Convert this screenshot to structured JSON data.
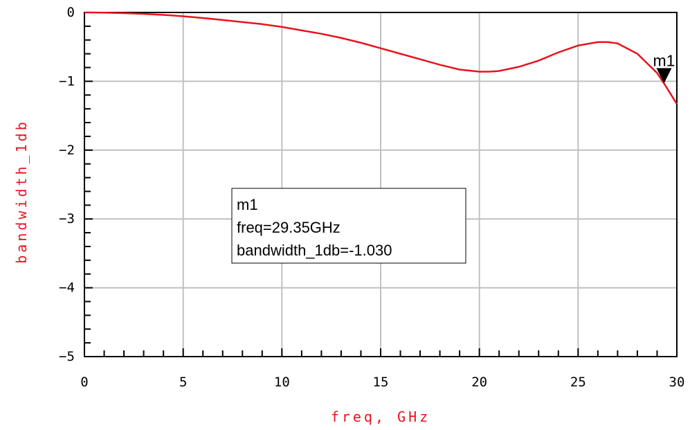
{
  "chart_data": {
    "type": "line",
    "title": "",
    "xlabel": "freq, GHz",
    "ylabel": "bandwidth_1db",
    "xlim": [
      0,
      30
    ],
    "ylim": [
      -5,
      0
    ],
    "x_ticks": [
      "0",
      "5",
      "10",
      "15",
      "20",
      "25",
      "30"
    ],
    "y_ticks": [
      "0",
      "−1",
      "−2",
      "−3",
      "−4",
      "−5"
    ],
    "grid": true,
    "colors": {
      "series": "#e8131c",
      "ylabel": "#e8131c",
      "xlabel": "#e8131c",
      "grid": "#c0c0c0",
      "axis": "#000000"
    },
    "series": [
      {
        "x": [
          0,
          1,
          2,
          3,
          4,
          5,
          6,
          7,
          8,
          9,
          10,
          11,
          12,
          13,
          14,
          15,
          16,
          17,
          18,
          19,
          20,
          20.5,
          21,
          22,
          23,
          24,
          25,
          26,
          26.5,
          27,
          28,
          29,
          29.35,
          30
        ],
        "y": [
          0,
          -0.003,
          -0.01,
          -0.02,
          -0.035,
          -0.055,
          -0.08,
          -0.11,
          -0.14,
          -0.17,
          -0.21,
          -0.26,
          -0.31,
          -0.37,
          -0.44,
          -0.52,
          -0.6,
          -0.68,
          -0.76,
          -0.83,
          -0.86,
          -0.86,
          -0.85,
          -0.79,
          -0.7,
          -0.58,
          -0.48,
          -0.43,
          -0.43,
          -0.45,
          -0.6,
          -0.88,
          -1.03,
          -1.33
        ]
      }
    ],
    "marker": {
      "name": "m1",
      "freq": 29.35,
      "value": -1.03,
      "readout": [
        "m1",
        "freq=29.35GHz",
        "bandwidth_1db=-1.030"
      ]
    }
  }
}
